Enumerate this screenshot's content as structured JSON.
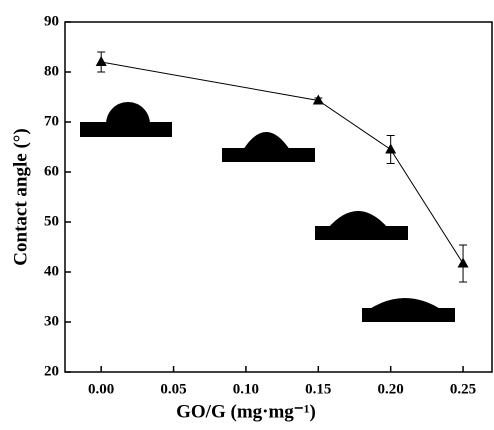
{
  "chart_data": {
    "type": "line",
    "x_label": "GO/G (mg·mg⁻¹)",
    "y_label": "Contact angle (°)",
    "x": [
      0.0,
      0.15,
      0.2,
      0.25
    ],
    "series": [
      {
        "color": "#000000",
        "values": [
          82,
          74.3,
          64.5,
          41.7
        ],
        "errors": [
          2,
          0.5,
          2.8,
          3.7
        ]
      }
    ],
    "xlim": [
      -0.025,
      0.27
    ],
    "ylim": [
      20,
      90
    ],
    "xticks": [
      {
        "value": 0,
        "label": "0.00"
      },
      {
        "value": 0.05,
        "label": "0.05"
      },
      {
        "value": 0.1,
        "label": "0.10"
      },
      {
        "value": 0.15,
        "label": "0.15"
      },
      {
        "value": 0.2,
        "label": "0.20"
      },
      {
        "value": 0.25,
        "label": "0.25"
      }
    ],
    "yticks": [
      20,
      30,
      40,
      50,
      60,
      70,
      80,
      90
    ]
  }
}
